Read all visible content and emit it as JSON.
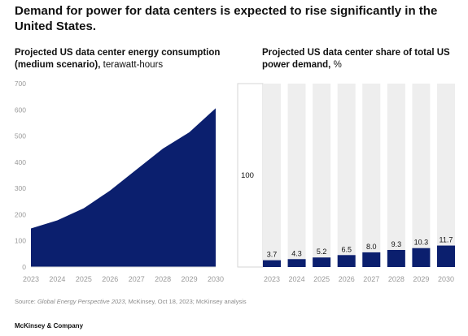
{
  "headline": "Demand for power for data centers is expected to rise significantly in the United States.",
  "colors": {
    "navy": "#0b1f6e",
    "track": "#eeeeee",
    "axis_text": "#9a9a9a",
    "gridline": "#d9d9d9"
  },
  "chart_data": [
    {
      "type": "area",
      "title": "Projected US data center energy consumption (medium scenario),",
      "unit": "terawatt-hours",
      "x": [
        "2023",
        "2024",
        "2025",
        "2026",
        "2027",
        "2028",
        "2029",
        "2030"
      ],
      "values": [
        147,
        178,
        224,
        292,
        372,
        452,
        514,
        606
      ],
      "ylim": [
        0,
        700
      ],
      "yticks": [
        0,
        100,
        200,
        300,
        400,
        500,
        600,
        700
      ],
      "color": "#0b1f6e"
    },
    {
      "type": "bar",
      "title": "Projected US data center share of total US power demand,",
      "unit": "%",
      "reference_label": "100",
      "reference_value": 100,
      "categories": [
        "2023",
        "2024",
        "2025",
        "2026",
        "2027",
        "2028",
        "2029",
        "2030"
      ],
      "values": [
        3.7,
        4.3,
        5.2,
        6.5,
        8.0,
        9.3,
        10.3,
        11.7
      ],
      "labels": [
        "3.7",
        "4.3",
        "5.2",
        "6.5",
        "8.0",
        "9.3",
        "10.3",
        "11.7"
      ],
      "ylim": [
        0,
        100
      ],
      "color": "#0b1f6e"
    }
  ],
  "source": {
    "prefix": "Source: ",
    "italic": "Global Energy Perspective 2023",
    "rest": ", McKinsey, Oct 18, 2023; McKinsey analysis"
  },
  "footer": "McKinsey & Company"
}
